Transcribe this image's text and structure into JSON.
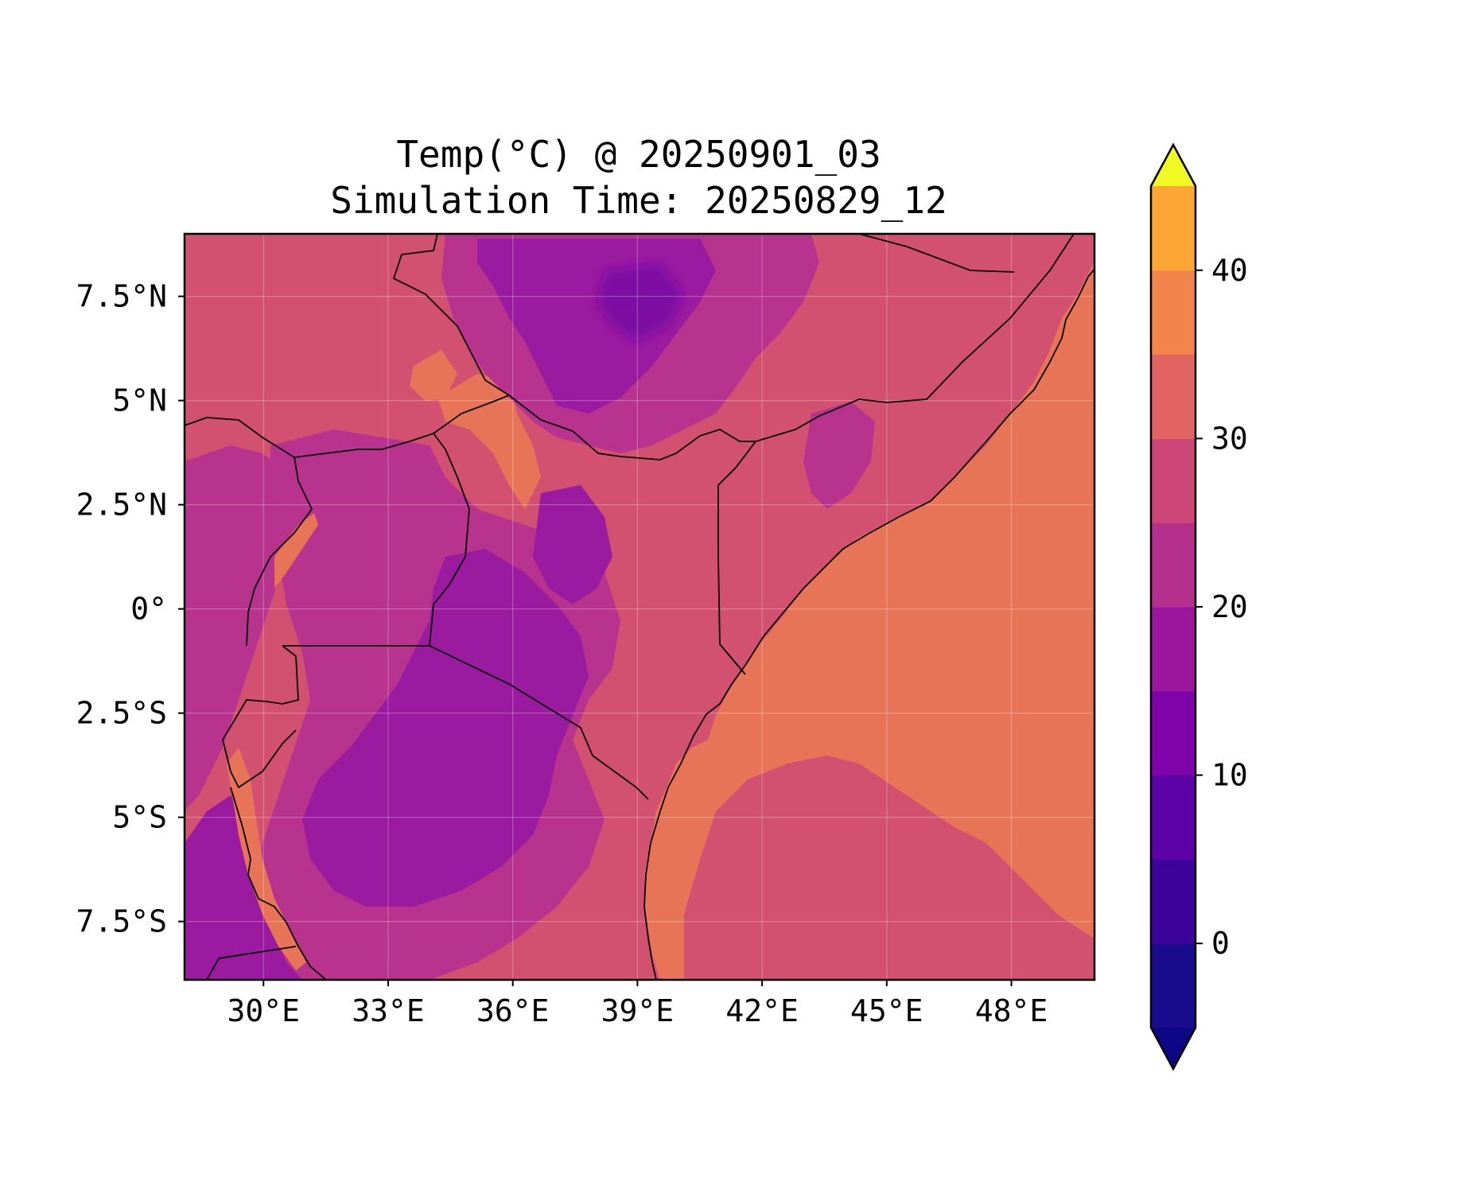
{
  "title": {
    "line1": "Temp(°C) @ 20250901_03",
    "line2": "Simulation Time: 20250829_12"
  },
  "map": {
    "lon_ticks": [
      "30°E",
      "33°E",
      "36°E",
      "39°E",
      "42°E",
      "45°E",
      "48°E"
    ],
    "lat_ticks": [
      "7.5°N",
      "5°N",
      "2.5°N",
      "0°",
      "2.5°S",
      "5°S",
      "7.5°S"
    ],
    "lon_tick_values": [
      30,
      33,
      36,
      39,
      42,
      45,
      48
    ],
    "lat_tick_values": [
      7.5,
      5,
      2.5,
      0,
      -2.5,
      -5,
      -7.5
    ],
    "lon_range": [
      28.1,
      50.0
    ],
    "lat_range": [
      -8.9,
      9.0
    ],
    "gridlines": true,
    "field_colors": {
      "ocean_warm": "#e87458",
      "land_mild": "#d35170",
      "highland": "#b8338e",
      "cool_highland": "#9a1ba0",
      "coldest": "#7e0ba4"
    }
  },
  "colorbar": {
    "tick_labels": [
      "0",
      "10",
      "20",
      "30",
      "40"
    ],
    "tick_values": [
      0,
      10,
      20,
      30,
      40
    ],
    "range": [
      -5,
      45
    ],
    "extend": "both",
    "levels": [
      -5,
      0,
      5,
      10,
      15,
      20,
      25,
      30,
      35,
      40,
      45
    ],
    "colors": [
      "#1a0a8c",
      "#3d049b",
      "#5c01a6",
      "#7e03a8",
      "#9c179e",
      "#b52f8c",
      "#cc4778",
      "#e16462",
      "#f2844b",
      "#fca636",
      "#f0f921"
    ],
    "extend_colors": {
      "under": "#0d0887",
      "over": "#f0f921"
    }
  }
}
